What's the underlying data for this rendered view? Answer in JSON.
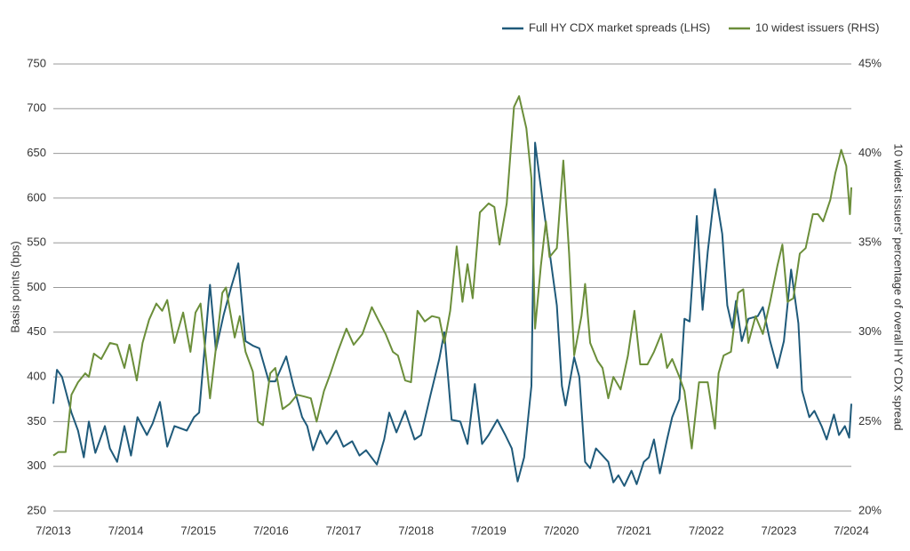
{
  "chart_data": {
    "type": "line",
    "ylabel": "Basis points (bps)",
    "y2label": "10 widest issuers’ percentage of overall HY CDX spread",
    "legend": "top-right",
    "grid": true,
    "xlim": [
      2013.5,
      2024.5
    ],
    "xticks": [
      {
        "value": 2013.5,
        "label": "7/2013"
      },
      {
        "value": 2014.5,
        "label": "7/2014"
      },
      {
        "value": 2015.5,
        "label": "7/2015"
      },
      {
        "value": 2016.5,
        "label": "7/2016"
      },
      {
        "value": 2017.5,
        "label": "7/2017"
      },
      {
        "value": 2018.5,
        "label": "7/2018"
      },
      {
        "value": 2019.5,
        "label": "7/2019"
      },
      {
        "value": 2020.5,
        "label": "7/2020"
      },
      {
        "value": 2021.5,
        "label": "7/2021"
      },
      {
        "value": 2022.5,
        "label": "7/2022"
      },
      {
        "value": 2023.5,
        "label": "7/2023"
      },
      {
        "value": 2024.5,
        "label": "7/2024"
      }
    ],
    "ylim": [
      250,
      750
    ],
    "yticks": [
      250,
      300,
      350,
      400,
      450,
      500,
      550,
      600,
      650,
      700,
      750
    ],
    "y2lim": [
      20,
      45
    ],
    "y2ticks": [
      {
        "value": 20,
        "label": "20%"
      },
      {
        "value": 25,
        "label": "25%"
      },
      {
        "value": 30,
        "label": "30%"
      },
      {
        "value": 35,
        "label": "35%"
      },
      {
        "value": 40,
        "label": "40%"
      },
      {
        "value": 45,
        "label": "45%"
      }
    ],
    "series": [
      {
        "name": "Full HY CDX market spreads (LHS)",
        "color": "#1f5a7a",
        "axis": "y",
        "x": [
          2013.5,
          2013.55,
          2013.62,
          2013.75,
          2013.84,
          2013.92,
          2013.99,
          2014.08,
          2014.21,
          2014.28,
          2014.38,
          2014.48,
          2014.57,
          2014.66,
          2014.79,
          2014.87,
          2014.97,
          2015.07,
          2015.17,
          2015.34,
          2015.44,
          2015.51,
          2015.66,
          2015.74,
          2015.85,
          2015.95,
          2016.05,
          2016.15,
          2016.25,
          2016.34,
          2016.47,
          2016.56,
          2016.71,
          2016.81,
          2016.93,
          2017.0,
          2017.08,
          2017.18,
          2017.27,
          2017.4,
          2017.5,
          2017.62,
          2017.72,
          2017.81,
          2017.96,
          2018.06,
          2018.13,
          2018.23,
          2018.35,
          2018.48,
          2018.57,
          2018.7,
          2018.82,
          2018.89,
          2018.99,
          2019.11,
          2019.21,
          2019.31,
          2019.41,
          2019.5,
          2019.62,
          2019.73,
          2019.82,
          2019.9,
          2019.99,
          2020.09,
          2020.14,
          2020.24,
          2020.34,
          2020.44,
          2020.51,
          2020.56,
          2020.68,
          2020.75,
          2020.83,
          2020.9,
          2020.98,
          2021.07,
          2021.15,
          2021.22,
          2021.29,
          2021.37,
          2021.47,
          2021.54,
          2021.64,
          2021.71,
          2021.78,
          2021.86,
          2021.96,
          2022.03,
          2022.13,
          2022.2,
          2022.27,
          2022.37,
          2022.45,
          2022.52,
          2022.62,
          2022.72,
          2022.79,
          2022.86,
          2022.91,
          2022.99,
          2023.08,
          2023.21,
          2023.28,
          2023.38,
          2023.48,
          2023.57,
          2023.67,
          2023.77,
          2023.82,
          2023.92,
          2023.99,
          2024.09,
          2024.16,
          2024.26,
          2024.33,
          2024.41,
          2024.47,
          2024.5
        ],
        "values": [
          370,
          408,
          400,
          360,
          340,
          310,
          350,
          315,
          345,
          320,
          305,
          345,
          312,
          355,
          335,
          348,
          372,
          322,
          345,
          340,
          355,
          360,
          503,
          430,
          470,
          500,
          527,
          440,
          435,
          432,
          395,
          395,
          423,
          390,
          355,
          345,
          318,
          340,
          325,
          340,
          322,
          328,
          312,
          318,
          302,
          330,
          360,
          338,
          362,
          330,
          335,
          380,
          420,
          450,
          352,
          350,
          325,
          392,
          325,
          335,
          352,
          335,
          320,
          283,
          310,
          390,
          662,
          600,
          540,
          480,
          390,
          368,
          422,
          400,
          305,
          298,
          320,
          312,
          305,
          282,
          290,
          278,
          295,
          280,
          305,
          310,
          330,
          292,
          330,
          355,
          375,
          465,
          462,
          580,
          475,
          540,
          610,
          560,
          480,
          455,
          485,
          440,
          465,
          468,
          478,
          440,
          410,
          440,
          520,
          460,
          385,
          355,
          362,
          345,
          330,
          358,
          335,
          345,
          332,
          370
        ]
      },
      {
        "name": "10 widest issuers (RHS)",
        "color": "#6b8e3a",
        "axis": "y2",
        "x": [
          2013.5,
          2013.57,
          2013.67,
          2013.75,
          2013.84,
          2013.94,
          2013.99,
          2014.06,
          2014.16,
          2014.28,
          2014.38,
          2014.48,
          2014.55,
          2014.65,
          2014.73,
          2014.82,
          2014.92,
          2015.0,
          2015.07,
          2015.17,
          2015.29,
          2015.39,
          2015.46,
          2015.53,
          2015.66,
          2015.73,
          2015.83,
          2015.88,
          2016.0,
          2016.07,
          2016.15,
          2016.25,
          2016.32,
          2016.39,
          2016.49,
          2016.56,
          2016.66,
          2016.76,
          2016.86,
          2016.96,
          2017.05,
          2017.13,
          2017.23,
          2017.32,
          2017.42,
          2017.54,
          2017.64,
          2017.76,
          2017.89,
          2017.99,
          2018.08,
          2018.18,
          2018.25,
          2018.35,
          2018.43,
          2018.52,
          2018.62,
          2018.72,
          2018.82,
          2018.89,
          2018.97,
          2019.06,
          2019.14,
          2019.21,
          2019.28,
          2019.38,
          2019.5,
          2019.58,
          2019.65,
          2019.75,
          2019.85,
          2019.92,
          2020.02,
          2020.09,
          2020.14,
          2020.22,
          2020.29,
          2020.34,
          2020.44,
          2020.53,
          2020.61,
          2020.68,
          2020.78,
          2020.83,
          2020.9,
          2021.0,
          2021.07,
          2021.15,
          2021.22,
          2021.32,
          2021.42,
          2021.51,
          2021.59,
          2021.69,
          2021.78,
          2021.88,
          2021.96,
          2022.03,
          2022.13,
          2022.2,
          2022.3,
          2022.4,
          2022.52,
          2022.62,
          2022.67,
          2022.74,
          2022.84,
          2022.94,
          2023.01,
          2023.08,
          2023.18,
          2023.28,
          2023.38,
          2023.48,
          2023.55,
          2023.62,
          2023.7,
          2023.79,
          2023.87,
          2023.97,
          2024.04,
          2024.11,
          2024.21,
          2024.28,
          2024.36,
          2024.43,
          2024.48,
          2024.5
        ],
        "values": [
          23.1,
          23.3,
          23.3,
          26.5,
          27.2,
          27.7,
          27.5,
          28.8,
          28.5,
          29.4,
          29.3,
          28.0,
          29.3,
          27.3,
          29.4,
          30.7,
          31.6,
          31.2,
          31.8,
          29.4,
          31.1,
          28.9,
          31.1,
          31.6,
          26.3,
          28.7,
          32.2,
          32.5,
          29.7,
          30.9,
          28.9,
          27.8,
          25.0,
          24.8,
          27.7,
          28.0,
          25.7,
          26.0,
          26.5,
          26.4,
          26.3,
          25.0,
          26.7,
          27.7,
          28.9,
          30.2,
          29.3,
          29.9,
          31.4,
          30.6,
          29.9,
          28.9,
          28.7,
          27.3,
          27.2,
          31.2,
          30.6,
          30.9,
          30.8,
          29.4,
          31.2,
          34.8,
          31.7,
          33.8,
          31.9,
          36.7,
          37.2,
          37.0,
          34.9,
          37.2,
          42.6,
          43.2,
          41.4,
          38.6,
          30.2,
          33.7,
          36.2,
          34.2,
          34.7,
          39.6,
          34.4,
          28.7,
          30.9,
          32.7,
          29.4,
          28.4,
          28.0,
          26.3,
          27.5,
          26.8,
          28.7,
          31.2,
          28.2,
          28.2,
          28.9,
          29.9,
          28.0,
          28.5,
          27.5,
          26.7,
          23.5,
          27.2,
          27.2,
          24.6,
          27.7,
          28.7,
          28.9,
          32.2,
          32.4,
          29.4,
          30.9,
          29.9,
          31.7,
          33.7,
          34.9,
          31.7,
          31.9,
          34.4,
          34.7,
          36.6,
          36.6,
          36.2,
          37.4,
          38.9,
          40.2,
          39.3,
          36.6,
          38.1
        ]
      }
    ]
  }
}
